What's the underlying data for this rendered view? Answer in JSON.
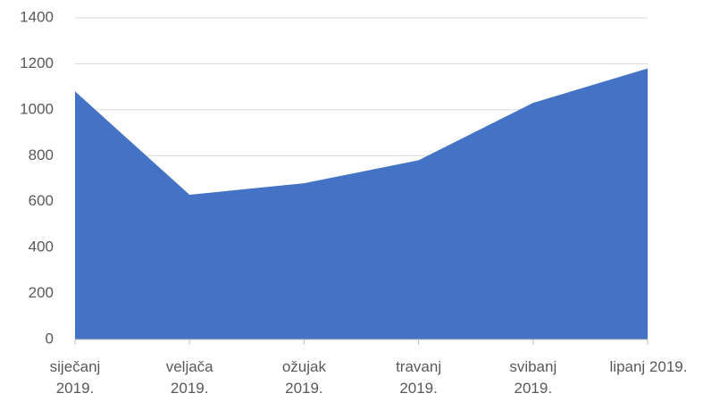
{
  "chart_data": {
    "type": "area",
    "categories": [
      "siječanj 2019.",
      "veljača 2019.",
      "ožujak 2019.",
      "travanj 2019.",
      "svibanj 2019.",
      "lipanj 2019."
    ],
    "values": [
      1080,
      630,
      680,
      780,
      1030,
      1180
    ],
    "color": "#4472c4",
    "ylim": [
      0,
      1400
    ],
    "yticks": [
      0,
      200,
      400,
      600,
      800,
      1000,
      1200,
      1400
    ],
    "grid": true
  }
}
